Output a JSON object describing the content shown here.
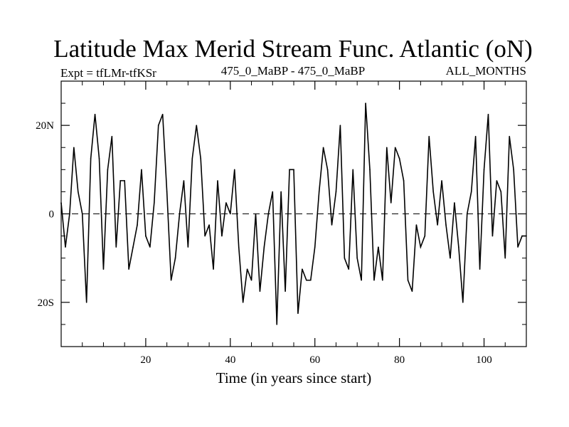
{
  "chart_data": {
    "type": "line",
    "title": "Latitude Max Merid Stream Func. Atlantic (oN)",
    "subtitle_left": "Expt = tfLMr-tfKSr",
    "subtitle_center": "475_0_MaBP - 475_0_MaBP",
    "subtitle_right": "ALL_MONTHS",
    "xlabel": "Time (in years since start)",
    "ylabel": "",
    "xlim": [
      0,
      110
    ],
    "ylim": [
      -30,
      30
    ],
    "x_ticks": [
      {
        "value": 20,
        "label": "20"
      },
      {
        "value": 40,
        "label": "40"
      },
      {
        "value": 60,
        "label": "60"
      },
      {
        "value": 80,
        "label": "80"
      },
      {
        "value": 100,
        "label": "100"
      }
    ],
    "y_ticks": [
      {
        "value": 20,
        "label": "20N"
      },
      {
        "value": 0,
        "label": "0"
      },
      {
        "value": -20,
        "label": "20S"
      }
    ],
    "reference_line": 0,
    "line_color": "#000000",
    "series": [
      {
        "name": "Latitude Max Merid Stream Func.",
        "x": [
          0,
          1,
          2,
          3,
          4,
          5,
          6,
          7,
          8,
          9,
          10,
          11,
          12,
          13,
          14,
          15,
          16,
          17,
          18,
          19,
          20,
          21,
          22,
          23,
          24,
          25,
          26,
          27,
          28,
          29,
          30,
          31,
          32,
          33,
          34,
          35,
          36,
          37,
          38,
          39,
          40,
          41,
          42,
          43,
          44,
          45,
          46,
          47,
          48,
          49,
          50,
          51,
          52,
          53,
          54,
          55,
          56,
          57,
          58,
          59,
          60,
          61,
          62,
          63,
          64,
          65,
          66,
          67,
          68,
          69,
          70,
          71,
          72,
          73,
          74,
          75,
          76,
          77,
          78,
          79,
          80,
          81,
          82,
          83,
          84,
          85,
          86,
          87,
          88,
          89,
          90,
          91,
          92,
          93,
          94,
          95,
          96,
          97,
          98,
          99,
          100,
          101,
          102,
          103,
          104,
          105,
          106,
          107,
          108,
          109,
          110
        ],
        "values": [
          2.5,
          -7.5,
          0,
          15,
          5,
          0,
          -20,
          12.5,
          22.5,
          12.5,
          -12.5,
          10,
          17.5,
          -7.5,
          7.5,
          7.5,
          -12.5,
          -7.5,
          -2.5,
          10,
          -5,
          -7.5,
          2.5,
          20,
          22.5,
          5,
          -15,
          -10,
          0,
          7.5,
          -7.5,
          12.5,
          20,
          12.5,
          -5,
          -2.5,
          -12.5,
          7.5,
          -5,
          2.5,
          0,
          10,
          -7.5,
          -20,
          -12.5,
          -15,
          0,
          -17.5,
          -7.5,
          0,
          5,
          -25,
          5,
          -17.5,
          10,
          10,
          -22.5,
          -12.5,
          -15,
          -15,
          -7.5,
          5,
          15,
          10,
          -2.5,
          5,
          20,
          -10,
          -12.5,
          10,
          -10,
          -15,
          25,
          10,
          -15,
          -7.5,
          -15,
          15,
          2.5,
          15,
          12.5,
          7.5,
          -15,
          -17.5,
          -2.5,
          -7.5,
          -5,
          17.5,
          5,
          -2.5,
          7.5,
          -2.5,
          -10,
          2.5,
          -7.5,
          -20,
          0,
          5,
          17.5,
          -12.5,
          10,
          22.5,
          -5,
          7.5,
          5,
          -10,
          17.5,
          10,
          -7.5,
          -5,
          -5
        ]
      }
    ]
  }
}
